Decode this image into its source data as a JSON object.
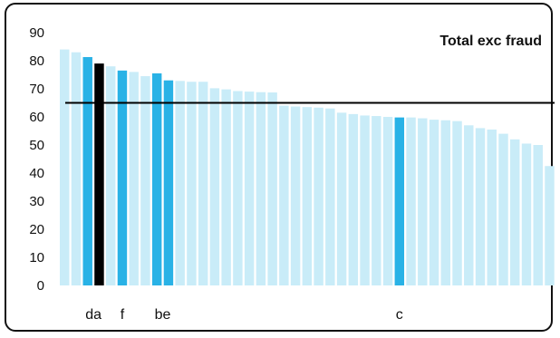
{
  "chart_data": {
    "type": "bar",
    "title": "Total exc fraud",
    "xlabel": "",
    "ylabel": "",
    "ylim": [
      0,
      90
    ],
    "yticks": [
      0,
      10,
      20,
      30,
      40,
      50,
      60,
      70,
      80,
      90
    ],
    "reference_line": 65,
    "grid": false,
    "values": [
      84,
      83,
      81.3,
      79,
      78,
      76.5,
      76,
      74.5,
      75.5,
      73,
      72.8,
      72.5,
      72.5,
      70.2,
      69.8,
      69.2,
      69,
      68.8,
      68.7,
      64,
      63.7,
      63.5,
      63.3,
      63,
      61.5,
      61,
      60.5,
      60.3,
      60,
      59.8,
      59.8,
      59.5,
      59,
      58.8,
      58.5,
      57,
      56,
      55.5,
      54,
      52,
      50.5,
      50,
      42.5
    ],
    "highlight": [
      null,
      null,
      "",
      "",
      null,
      "",
      null,
      null,
      "",
      "",
      null,
      null,
      null,
      null,
      null,
      null,
      null,
      null,
      null,
      null,
      null,
      null,
      null,
      null,
      null,
      null,
      null,
      null,
      null,
      "",
      null,
      null,
      null,
      null,
      null,
      null,
      null,
      null,
      null,
      null,
      null,
      null,
      null
    ],
    "bar_labels": [
      {
        "text": "da",
        "start": 2,
        "end": 3
      },
      {
        "text": "f",
        "start": 5,
        "end": 5
      },
      {
        "text": "be",
        "start": 8,
        "end": 9
      },
      {
        "text": "c",
        "start": 29,
        "end": 29
      }
    ],
    "colors": {
      "default": "#c9ecf8",
      "highlight": "#29b2e6",
      "dark": "#000000",
      "line": "#000000"
    },
    "dark_index": 3
  }
}
